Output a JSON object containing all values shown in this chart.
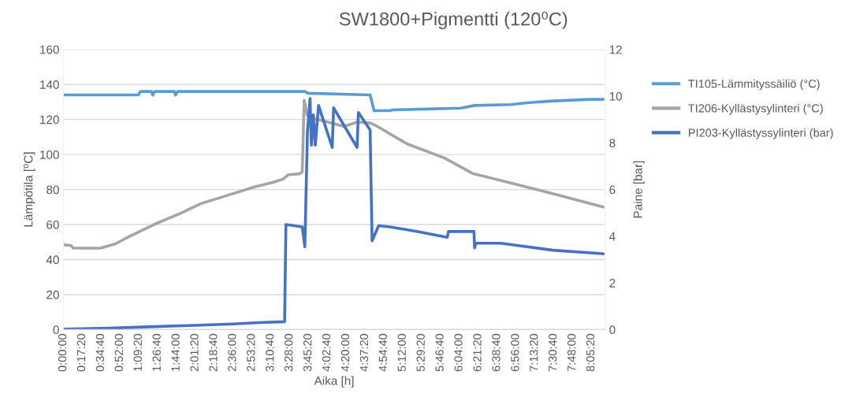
{
  "chart_data": {
    "type": "line",
    "title": "SW1800+Pigmentti (120⁰C)",
    "xlabel": "Aika [h]",
    "ylabel": "Lämpötila [⁰C]",
    "y2label": "Paine [bar]",
    "xlim": [
      0,
      8.3
    ],
    "xticks": [
      {
        "value": 0,
        "label": "0:00:00"
      },
      {
        "value": 0.2889,
        "label": "0:17:20"
      },
      {
        "value": 0.5778,
        "label": "0:34:40"
      },
      {
        "value": 0.8667,
        "label": "0:52:00"
      },
      {
        "value": 1.1556,
        "label": "1:09:20"
      },
      {
        "value": 1.4444,
        "label": "1:26:40"
      },
      {
        "value": 1.7333,
        "label": "1:44:00"
      },
      {
        "value": 2.0222,
        "label": "2:01:20"
      },
      {
        "value": 2.3111,
        "label": "2:18:40"
      },
      {
        "value": 2.6,
        "label": "2:36:00"
      },
      {
        "value": 2.8889,
        "label": "2:53:20"
      },
      {
        "value": 3.1778,
        "label": "3:10:40"
      },
      {
        "value": 3.4667,
        "label": "3:28:00"
      },
      {
        "value": 3.7556,
        "label": "3:45:20"
      },
      {
        "value": 4.0444,
        "label": "4:02:40"
      },
      {
        "value": 4.3333,
        "label": "4:20:00"
      },
      {
        "value": 4.6222,
        "label": "4:37:20"
      },
      {
        "value": 4.9111,
        "label": "4:54:40"
      },
      {
        "value": 5.2,
        "label": "5:12:00"
      },
      {
        "value": 5.4889,
        "label": "5:29:20"
      },
      {
        "value": 5.7778,
        "label": "5:46:40"
      },
      {
        "value": 6.0667,
        "label": "6:04:00"
      },
      {
        "value": 6.3556,
        "label": "6:21:20"
      },
      {
        "value": 6.6444,
        "label": "6:38:40"
      },
      {
        "value": 6.9333,
        "label": "6:56:00"
      },
      {
        "value": 7.2222,
        "label": "7:13:20"
      },
      {
        "value": 7.5111,
        "label": "7:30:40"
      },
      {
        "value": 7.8,
        "label": "7:48:00"
      },
      {
        "value": 8.0889,
        "label": "8:05:20"
      }
    ],
    "ylim": [
      0,
      160
    ],
    "yticks": [
      0,
      20,
      40,
      60,
      80,
      100,
      120,
      140,
      160
    ],
    "y2lim": [
      0,
      12
    ],
    "y2ticks": [
      0,
      2,
      4,
      6,
      8,
      10,
      12
    ],
    "grid": "y",
    "legend": "right",
    "marker": "none",
    "line_style": "solid",
    "series": [
      {
        "name": "TI105-Lämmityssäiliö (°C)",
        "color": "#5b9bd5",
        "x": [
          0,
          1.15,
          1.18,
          1.35,
          1.37,
          1.4,
          1.7,
          1.72,
          1.75,
          3.7,
          3.75,
          4.7,
          4.76,
          5.0,
          5.05,
          5.58,
          6.09,
          6.3,
          6.85,
          7.1,
          7.46,
          8.07,
          8.27
        ],
        "values": [
          134,
          134,
          136,
          136,
          134,
          136,
          136,
          134,
          136,
          136,
          135,
          134,
          125,
          125,
          125.5,
          126,
          126.5,
          128,
          128.5,
          129.5,
          130.5,
          131.5,
          131.5
        ]
      },
      {
        "name": "TI206-Kyllästysylinteri (°C)",
        "color": "#a5a5a5",
        "x": [
          0,
          0.12,
          0.15,
          0.57,
          0.8,
          1.0,
          1.39,
          1.8,
          2.11,
          2.5,
          2.93,
          3.2,
          3.37,
          3.45,
          3.62,
          3.66,
          3.69,
          3.74,
          3.84,
          4.1,
          4.3,
          4.5,
          4.7,
          4.79,
          5.27,
          5.84,
          6.28,
          6.77,
          7.46,
          8.27
        ],
        "values": [
          48.5,
          48,
          46.5,
          46.5,
          49,
          53,
          60,
          66.5,
          72,
          76.5,
          81.5,
          84,
          86,
          88.5,
          89,
          90,
          131,
          122,
          120.5,
          118,
          116,
          118.5,
          118,
          116.5,
          106,
          98,
          89,
          84.5,
          78,
          70
        ]
      },
      {
        "name": "PI203-Kyllästyssylinteri (bar)",
        "color": "#4472c4",
        "axis": "y2",
        "x": [
          0,
          0.7,
          1.3,
          2.0,
          2.6,
          3.0,
          3.39,
          3.41,
          3.66,
          3.7,
          3.74,
          3.78,
          3.8,
          3.83,
          3.86,
          3.91,
          4.12,
          4.14,
          4.5,
          4.52,
          4.7,
          4.73,
          4.83,
          5.0,
          5.43,
          5.88,
          5.9,
          6.29,
          6.3,
          6.32,
          6.7,
          7.5,
          8.27
        ],
        "values": [
          0.02,
          0.06,
          0.12,
          0.18,
          0.24,
          0.3,
          0.34,
          4.5,
          4.4,
          3.55,
          8.5,
          9.9,
          7.9,
          9.2,
          7.9,
          9.6,
          7.8,
          9.5,
          7.8,
          9.3,
          8.55,
          3.8,
          4.45,
          4.4,
          4.2,
          3.95,
          4.2,
          4.2,
          3.5,
          3.7,
          3.7,
          3.4,
          3.25
        ]
      }
    ]
  }
}
